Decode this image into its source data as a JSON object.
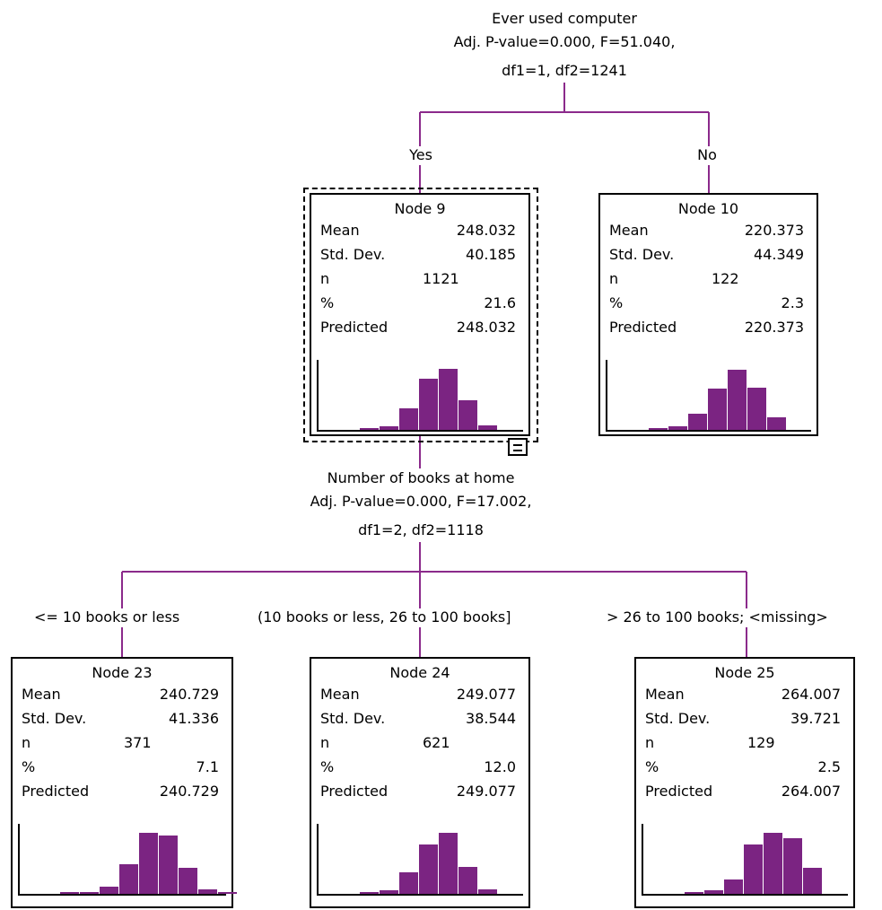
{
  "colors": {
    "connector": "#8b2a8b",
    "bar": "#7b2482",
    "border": "#000000"
  },
  "splits": [
    {
      "variable": "Ever used computer",
      "stats": "Adj. P-value=0.000, F=51.040,",
      "df": "df1=1, df2=1241"
    },
    {
      "variable": "Number of books at home",
      "stats": "Adj. P-value=0.000, F=17.002,",
      "df": "df1=2, df2=1118"
    }
  ],
  "branches": {
    "yes": "Yes",
    "no": "No",
    "b23": "<= 10 books or less",
    "b24": "(10 books or less, 26 to 100 books]",
    "b25": "> 26 to 100 books;  <missing>"
  },
  "stat_labels": {
    "mean": "Mean",
    "std": "Std. Dev.",
    "n": "n",
    "pct": "%",
    "predicted": "Predicted"
  },
  "nodes": {
    "n9": {
      "title": "Node 9",
      "mean": "248.032",
      "std": "40.185",
      "n": "1121",
      "pct": "21.6",
      "predicted": "248.032",
      "hist": [
        0.02,
        0.05,
        0.32,
        0.75,
        0.9,
        0.43,
        0.06,
        0
      ]
    },
    "n10": {
      "title": "Node 10",
      "mean": "220.373",
      "std": "44.349",
      "n": "122",
      "pct": "2.3",
      "predicted": "220.373",
      "hist": [
        0.02,
        0.05,
        0.24,
        0.6,
        0.88,
        0.62,
        0.18,
        0
      ]
    },
    "n23": {
      "title": "Node 23",
      "mean": "240.729",
      "std": "41.336",
      "n": "371",
      "pct": "7.1",
      "predicted": "240.729",
      "hist": [
        0.01,
        0.02,
        0.1,
        0.44,
        0.9,
        0.85,
        0.38,
        0.07,
        0.03
      ]
    },
    "n24": {
      "title": "Node 24",
      "mean": "249.077",
      "std": "38.544",
      "n": "621",
      "pct": "12.0",
      "predicted": "249.077",
      "hist": [
        0.02,
        0.05,
        0.31,
        0.72,
        0.9,
        0.4,
        0.06,
        0
      ]
    },
    "n25": {
      "title": "Node 25",
      "mean": "264.007",
      "std": "39.721",
      "n": "129",
      "pct": "2.5",
      "predicted": "264.007",
      "hist": [
        0.02,
        0.05,
        0.21,
        0.73,
        0.9,
        0.81,
        0.38,
        0
      ]
    }
  }
}
